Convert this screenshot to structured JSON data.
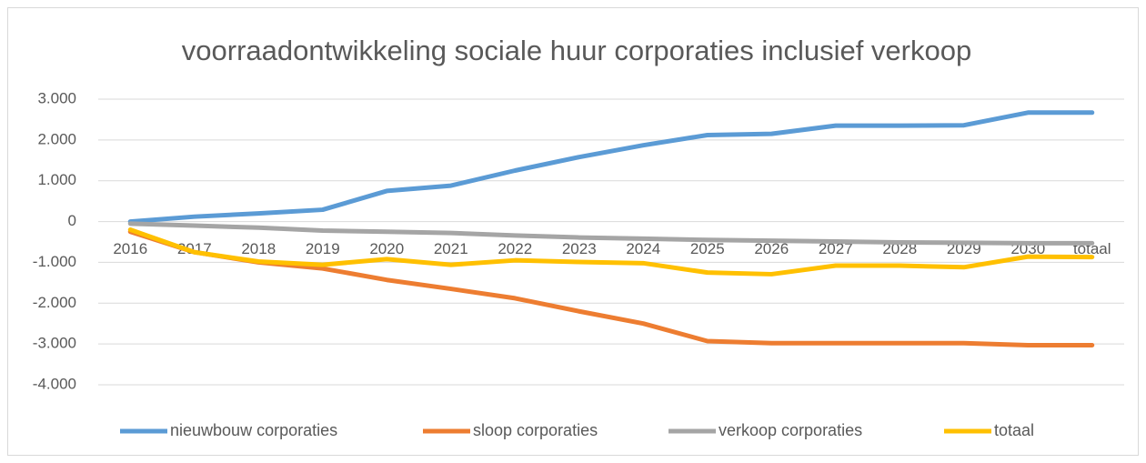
{
  "chart_data": {
    "type": "line",
    "title": "voorraadontwikkeling sociale huur corporaties inclusief verkoop",
    "categories": [
      "2016",
      "2017",
      "2018",
      "2019",
      "2020",
      "2021",
      "2022",
      "2023",
      "2024",
      "2025",
      "2026",
      "2027",
      "2028",
      "2029",
      "2030",
      "totaal"
    ],
    "series": [
      {
        "name": "nieuwbouw corporaties",
        "color": "#5b9bd5",
        "values": [
          0,
          120,
          200,
          290,
          750,
          880,
          1250,
          1580,
          1870,
          2120,
          2150,
          2350,
          2350,
          2360,
          2670,
          2670
        ]
      },
      {
        "name": "sloop corporaties",
        "color": "#ed7d31",
        "values": [
          -250,
          -750,
          -1000,
          -1150,
          -1430,
          -1650,
          -1880,
          -2200,
          -2500,
          -2930,
          -2980,
          -2980,
          -2980,
          -2980,
          -3030,
          -3030
        ]
      },
      {
        "name": "verkoop corporaties",
        "color": "#a5a5a5",
        "values": [
          -50,
          -100,
          -150,
          -220,
          -250,
          -280,
          -340,
          -390,
          -420,
          -450,
          -470,
          -490,
          -510,
          -520,
          -530,
          -530
        ]
      },
      {
        "name": "totaal",
        "color": "#ffc000",
        "values": [
          -200,
          -750,
          -980,
          -1060,
          -920,
          -1060,
          -950,
          -990,
          -1020,
          -1250,
          -1290,
          -1080,
          -1080,
          -1120,
          -860,
          -870
        ]
      }
    ],
    "ylim": [
      -4000,
      3000
    ],
    "yticks": [
      {
        "value": -4000,
        "label": "-4.000"
      },
      {
        "value": -3000,
        "label": "-3.000"
      },
      {
        "value": -2000,
        "label": "-2.000"
      },
      {
        "value": -1000,
        "label": "-1.000"
      },
      0,
      {
        "value": 1000,
        "label": "1.000"
      },
      {
        "value": 2000,
        "label": "2.000"
      },
      {
        "value": 3000,
        "label": "3.000"
      }
    ],
    "grid": true,
    "legend": "bottom"
  }
}
